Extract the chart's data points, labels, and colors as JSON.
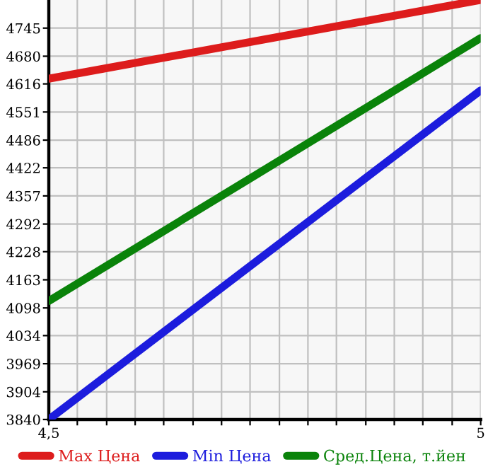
{
  "chart_data": {
    "type": "line",
    "x": [
      4.5,
      5
    ],
    "series": [
      {
        "name": "Max Цена",
        "color": "#dd1c1c",
        "values": [
          4628,
          4810
        ]
      },
      {
        "name": "Min Цена",
        "color": "#1c1cdd",
        "values": [
          3840,
          4601
        ]
      },
      {
        "name": "Сред.Цена, т.йен",
        "color": "#0a830a",
        "values": [
          4114,
          4722
        ]
      }
    ],
    "xlim": [
      4.5,
      5
    ],
    "xticks": [
      {
        "value": 4.5,
        "label": "4,5"
      },
      {
        "value": 4.533,
        "label": null
      },
      {
        "value": 4.567,
        "label": null
      },
      {
        "value": 4.6,
        "label": null
      },
      {
        "value": 4.633,
        "label": null
      },
      {
        "value": 4.667,
        "label": null
      },
      {
        "value": 4.7,
        "label": null
      },
      {
        "value": 4.733,
        "label": null
      },
      {
        "value": 4.767,
        "label": null
      },
      {
        "value": 4.8,
        "label": null
      },
      {
        "value": 4.833,
        "label": null
      },
      {
        "value": 4.867,
        "label": null
      },
      {
        "value": 4.9,
        "label": null
      },
      {
        "value": 4.933,
        "label": null
      },
      {
        "value": 4.967,
        "label": null
      },
      {
        "value": 5,
        "label": "5"
      }
    ],
    "ylim": [
      3840,
      4810
    ],
    "yticks": [
      3840,
      3904,
      3969,
      4034,
      4098,
      4163,
      4228,
      4292,
      4357,
      4422,
      4486,
      4551,
      4616,
      4680,
      4745
    ],
    "grid": true,
    "legend": "bottom",
    "marker": "none",
    "line_style": "solid"
  }
}
